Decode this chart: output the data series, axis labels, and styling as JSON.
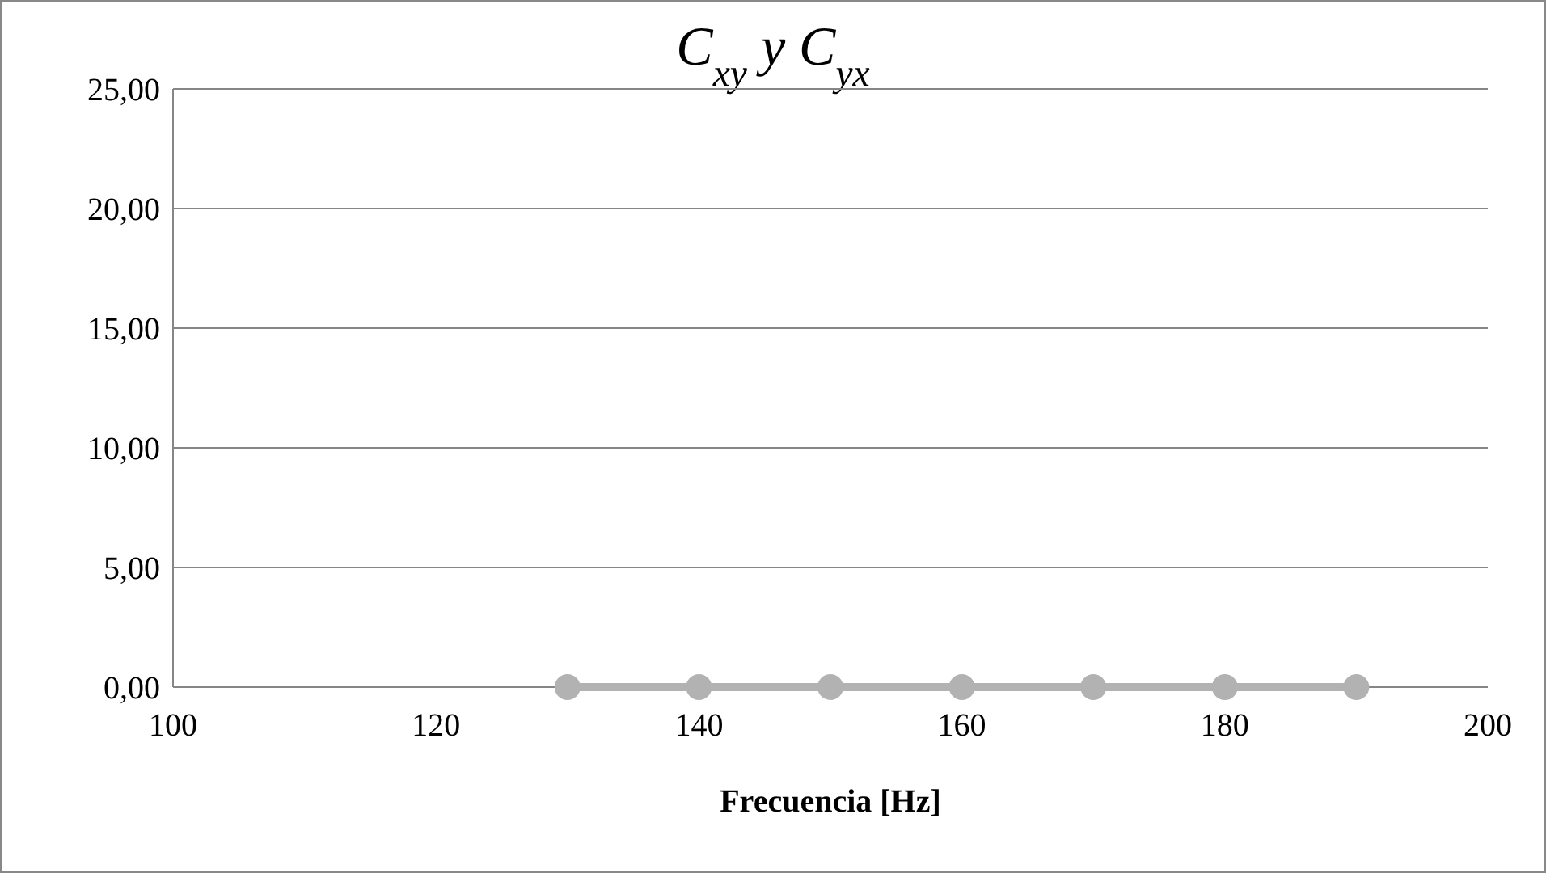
{
  "chart_data": {
    "type": "line",
    "title": "C$_{xy}$ y C$_{yx}$",
    "xlabel": "Frecuencia [Hz]",
    "x": [
      130,
      140,
      150,
      160,
      170,
      180,
      190
    ],
    "series": [
      {
        "color": "#b2b2b2",
        "values": [
          0,
          0,
          0,
          0,
          0,
          0,
          0
        ]
      }
    ],
    "xlim": [
      100,
      200
    ],
    "xticks": [
      100,
      120,
      140,
      160,
      180,
      200
    ],
    "ylim": [
      0,
      25
    ],
    "yticks": [
      {
        "value": 0,
        "label": "0,00"
      },
      {
        "value": 5,
        "label": "5,00"
      },
      {
        "value": 10,
        "label": "10,00"
      },
      {
        "value": 15,
        "label": "15,00"
      },
      {
        "value": 20,
        "label": "20,00"
      },
      {
        "value": 25,
        "label": "25,00"
      }
    ],
    "grid": "y",
    "marker": "circle",
    "line_style": "solid"
  }
}
